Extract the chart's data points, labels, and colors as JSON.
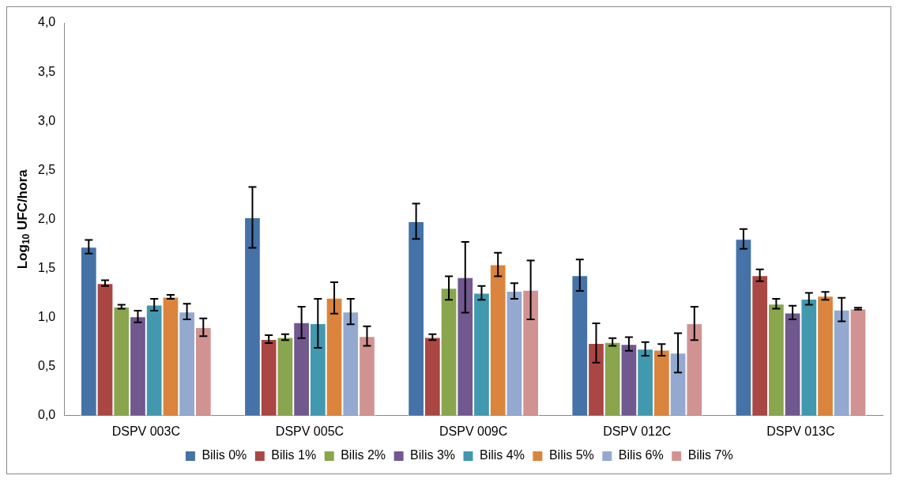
{
  "chart_data": {
    "type": "bar",
    "ylabel": "Log$_{10}$ UFC/hora",
    "categories": [
      "DSPV 003C",
      "DSPV 005C",
      "DSPV 009C",
      "DSPV 012C",
      "DSPV 013C"
    ],
    "ylim": [
      0,
      4
    ],
    "yticks": [
      {
        "value": 0,
        "label": "0,0"
      },
      {
        "value": 0.5,
        "label": "0,5"
      },
      {
        "value": 1,
        "label": "1,0"
      },
      {
        "value": 1.5,
        "label": "1,5"
      },
      {
        "value": 2,
        "label": "2,0"
      },
      {
        "value": 2.5,
        "label": "2,5"
      },
      {
        "value": 3,
        "label": "3,0"
      },
      {
        "value": 3.5,
        "label": "3,5"
      },
      {
        "value": 4,
        "label": "4,0"
      }
    ],
    "grid": false,
    "legend": "bottom",
    "series": [
      {
        "name": "Bilis 0%",
        "color": "#4572a7",
        "values": [
          1.72,
          2.02,
          1.98,
          1.43,
          1.8
        ],
        "errors": [
          0.07,
          0.31,
          0.18,
          0.16,
          0.1
        ]
      },
      {
        "name": "Bilis 1%",
        "color": "#aa4643",
        "values": [
          1.35,
          0.78,
          0.8,
          0.74,
          1.43
        ],
        "errors": [
          0.03,
          0.04,
          0.03,
          0.2,
          0.06
        ]
      },
      {
        "name": "Bilis 2%",
        "color": "#89a54e",
        "values": [
          1.11,
          0.8,
          1.3,
          0.75,
          1.14
        ],
        "errors": [
          0.02,
          0.03,
          0.12,
          0.04,
          0.05
        ]
      },
      {
        "name": "Bilis 3%",
        "color": "#71588f",
        "values": [
          1.01,
          0.95,
          1.41,
          0.73,
          1.05
        ],
        "errors": [
          0.06,
          0.16,
          0.36,
          0.07,
          0.07
        ]
      },
      {
        "name": "Bilis 4%",
        "color": "#4198af",
        "values": [
          1.13,
          0.94,
          1.25,
          0.68,
          1.19
        ],
        "errors": [
          0.06,
          0.25,
          0.07,
          0.07,
          0.06
        ]
      },
      {
        "name": "Bilis 5%",
        "color": "#db843d",
        "values": [
          1.21,
          1.2,
          1.54,
          0.67,
          1.22
        ],
        "errors": [
          0.02,
          0.16,
          0.12,
          0.06,
          0.04
        ]
      },
      {
        "name": "Bilis 6%",
        "color": "#93a9cf",
        "values": [
          1.06,
          1.06,
          1.27,
          0.64,
          1.08
        ],
        "errors": [
          0.08,
          0.13,
          0.08,
          0.2,
          0.12
        ]
      },
      {
        "name": "Bilis 7%",
        "color": "#d19392",
        "values": [
          0.9,
          0.81,
          1.28,
          0.94,
          1.09
        ],
        "errors": [
          0.09,
          0.1,
          0.3,
          0.17,
          0.01
        ]
      }
    ]
  }
}
